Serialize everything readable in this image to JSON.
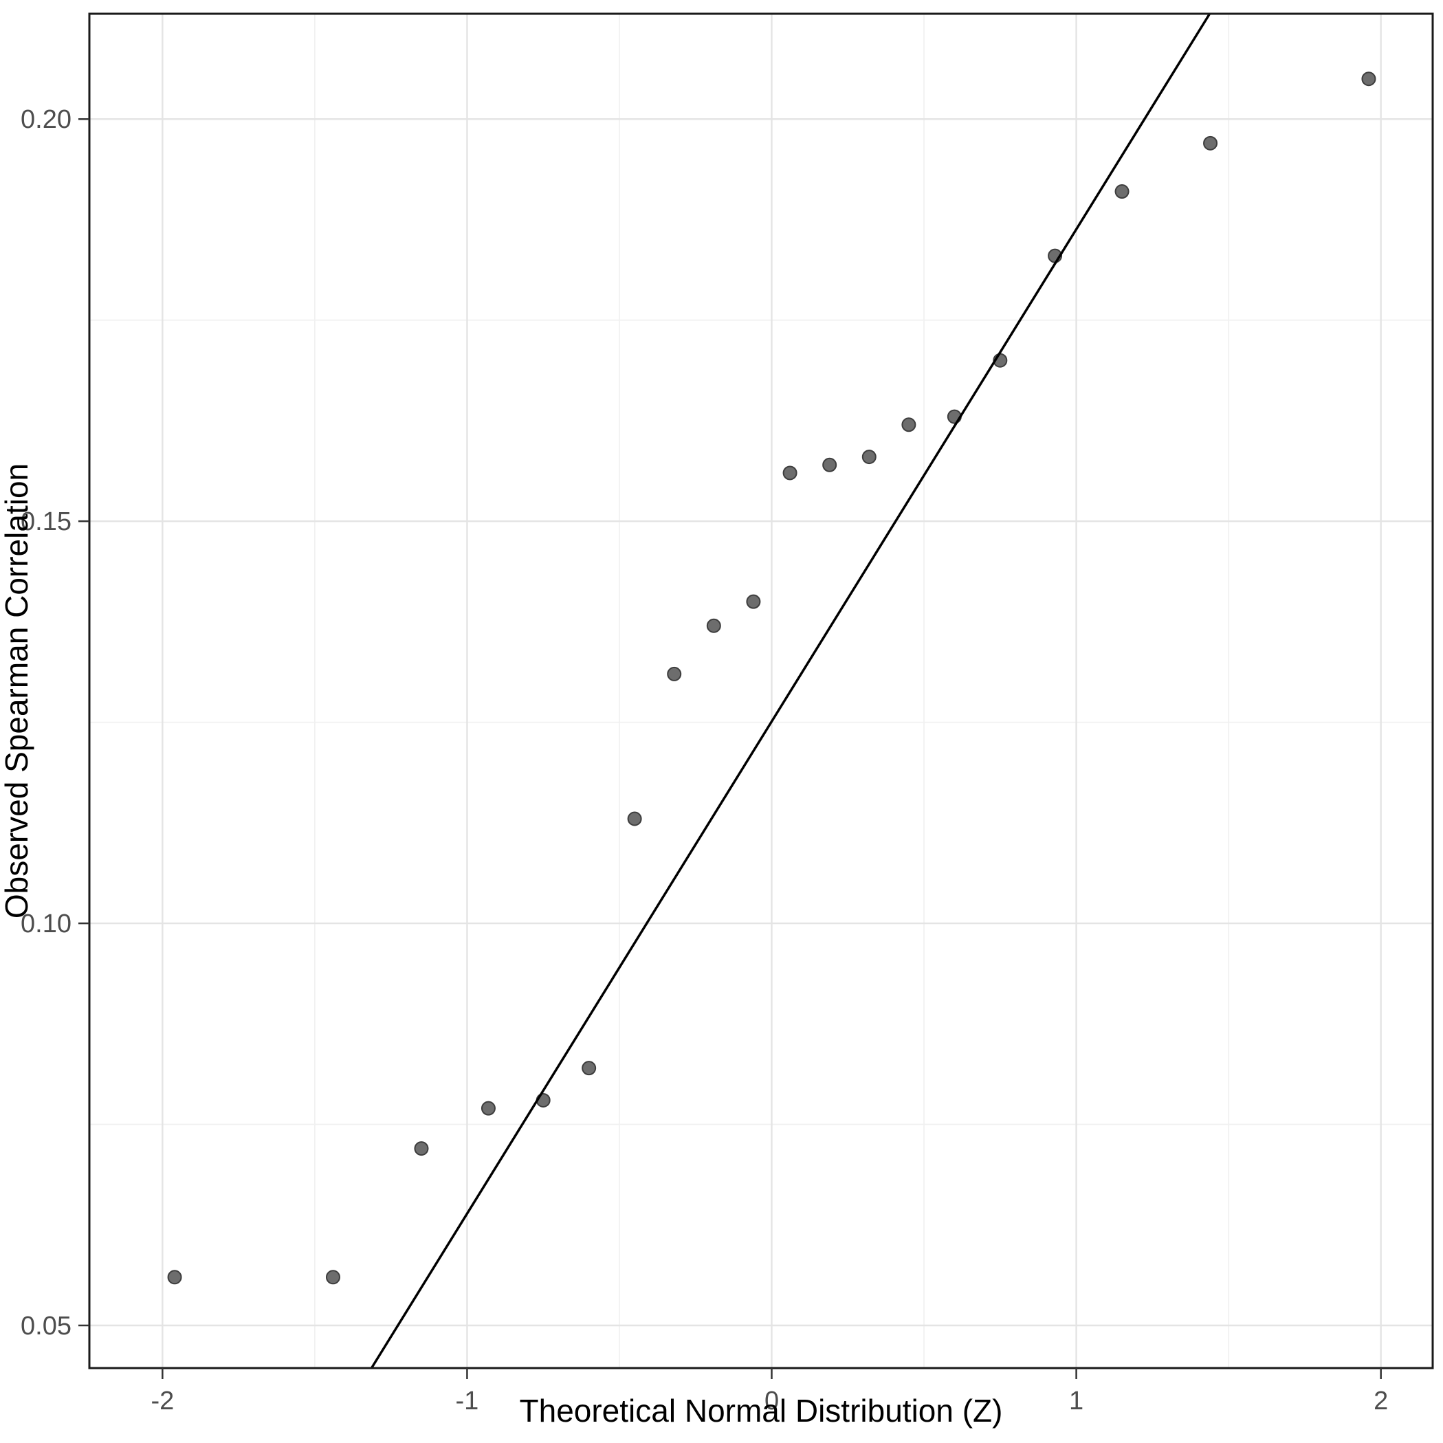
{
  "chart_data": {
    "type": "scatter",
    "title": "",
    "xlabel": "Theoretical Normal Distribution (Z)",
    "ylabel": "Observed Spearman Correlation",
    "xlim": [
      -2.24,
      2.17
    ],
    "ylim": [
      0.0447,
      0.2131
    ],
    "grid": true,
    "legend": "none",
    "x_ticks": {
      "values": [
        -2,
        -1,
        0,
        1,
        2
      ],
      "labels": [
        "-2",
        "-1",
        "0",
        "1",
        "2"
      ]
    },
    "y_ticks": {
      "values": [
        0.05,
        0.1,
        0.15,
        0.2
      ],
      "labels": [
        "0.05",
        "0.10",
        "0.15",
        "0.20"
      ]
    },
    "x_minor_gridlines": [
      -1.5,
      -0.5,
      0.5,
      1.5
    ],
    "y_minor_gridlines": [
      0.075,
      0.125,
      0.175
    ],
    "points": [
      {
        "x": -1.96,
        "y": 0.056
      },
      {
        "x": -1.44,
        "y": 0.056
      },
      {
        "x": -1.15,
        "y": 0.072
      },
      {
        "x": -0.93,
        "y": 0.077
      },
      {
        "x": -0.75,
        "y": 0.078
      },
      {
        "x": -0.6,
        "y": 0.082
      },
      {
        "x": -0.45,
        "y": 0.113
      },
      {
        "x": -0.32,
        "y": 0.131
      },
      {
        "x": -0.19,
        "y": 0.137
      },
      {
        "x": -0.06,
        "y": 0.14
      },
      {
        "x": 0.06,
        "y": 0.156
      },
      {
        "x": 0.19,
        "y": 0.157
      },
      {
        "x": 0.32,
        "y": 0.158
      },
      {
        "x": 0.45,
        "y": 0.162
      },
      {
        "x": 0.6,
        "y": 0.163
      },
      {
        "x": 0.75,
        "y": 0.17
      },
      {
        "x": 0.93,
        "y": 0.183
      },
      {
        "x": 1.15,
        "y": 0.191
      },
      {
        "x": 1.44,
        "y": 0.197
      },
      {
        "x": 1.96,
        "y": 0.205
      }
    ],
    "reference_line": {
      "slope": 0.0612,
      "intercept": 0.1251
    },
    "colors": {
      "background": "#ffffff",
      "panel_border": "#1a1a1a",
      "grid_major": "#e4e4e4",
      "grid_minor": "#f1f1f1",
      "point_fill": "#6d6d6d",
      "point_stroke": "#3d3d3d",
      "reference_line": "#000000",
      "tick_label": "#4d4d4d",
      "axis_title": "#000000",
      "tick_mark": "#333333"
    }
  }
}
